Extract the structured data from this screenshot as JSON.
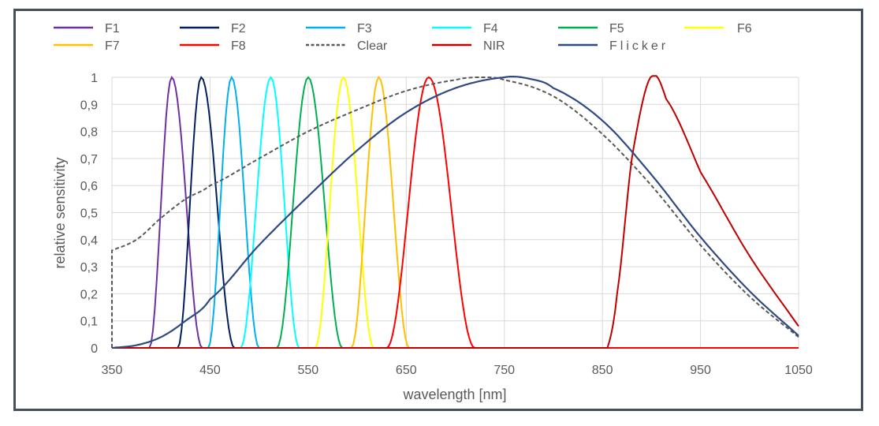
{
  "chart_data": {
    "type": "line",
    "title": "",
    "xlabel": "wavelength [nm]",
    "ylabel": "relative sensitivity",
    "xlim": [
      350,
      1050
    ],
    "ylim": [
      0,
      1
    ],
    "xticks": [
      "350",
      "450",
      "550",
      "650",
      "750",
      "850",
      "950",
      "1050"
    ],
    "xtick_values": [
      350,
      450,
      550,
      650,
      750,
      850,
      950,
      1050
    ],
    "yticks": [
      "0",
      "0,1",
      "0,2",
      "0,3",
      "0,4",
      "0,5",
      "0,6",
      "0,7",
      "0,8",
      "0,9",
      "1"
    ],
    "ytick_values": [
      0,
      0.1,
      0.2,
      0.3,
      0.4,
      0.5,
      0.6,
      0.7,
      0.8,
      0.9,
      1
    ],
    "grid": true,
    "legend_position": "top",
    "series": [
      {
        "name": "F1",
        "color": "#7030a0",
        "style": "solid",
        "interp": "cosine",
        "x": [
          350,
          388,
          411,
          442,
          1050
        ],
        "y": [
          0,
          0,
          1,
          0,
          0
        ]
      },
      {
        "name": "F2",
        "color": "#002060",
        "style": "solid",
        "interp": "cosine",
        "x": [
          350,
          417,
          441,
          475,
          1050
        ],
        "y": [
          0,
          0,
          1,
          0,
          0
        ]
      },
      {
        "name": "F3",
        "color": "#00b0f0",
        "style": "solid",
        "interp": "cosine",
        "x": [
          350,
          448,
          472,
          500,
          1050
        ],
        "y": [
          0,
          0,
          1,
          0,
          0
        ]
      },
      {
        "name": "F4",
        "color": "#00ffff",
        "style": "solid",
        "interp": "cosine",
        "x": [
          350,
          481,
          512,
          541,
          1050
        ],
        "y": [
          0,
          0,
          1,
          0,
          0
        ]
      },
      {
        "name": "F5",
        "color": "#00b050",
        "style": "solid",
        "interp": "cosine",
        "x": [
          350,
          518,
          550,
          585,
          1050
        ],
        "y": [
          0,
          0,
          1,
          0,
          0
        ]
      },
      {
        "name": "F6",
        "color": "#ffff00",
        "style": "solid",
        "interp": "cosine",
        "x": [
          350,
          557,
          586,
          617,
          1050
        ],
        "y": [
          0,
          0,
          1,
          0,
          0
        ]
      },
      {
        "name": "F7",
        "color": "#ffc000",
        "style": "solid",
        "interp": "cosine",
        "x": [
          350,
          594,
          622,
          653,
          1050
        ],
        "y": [
          0,
          0,
          1,
          0,
          0
        ]
      },
      {
        "name": "F8",
        "color": "#ff0000",
        "style": "solid",
        "interp": "cosine",
        "x": [
          350,
          630,
          673,
          720,
          1050
        ],
        "y": [
          0,
          0,
          1,
          0,
          0
        ]
      },
      {
        "name": "Clear",
        "color": "#595959",
        "style": "dashed",
        "interp": "smooth",
        "x": [
          350,
          350,
          375,
          400,
          425,
          450,
          500,
          550,
          600,
          650,
          700,
          725,
          750,
          800,
          850,
          900,
          950,
          1000,
          1050
        ],
        "y": [
          0,
          0.36,
          0.4,
          0.48,
          0.55,
          0.6,
          0.7,
          0.8,
          0.88,
          0.95,
          0.99,
          1.0,
          0.99,
          0.93,
          0.79,
          0.6,
          0.38,
          0.19,
          0.04
        ]
      },
      {
        "name": "NIR",
        "color": "#c00000",
        "style": "solid",
        "interp": "smooth",
        "x": [
          350,
          855,
          865,
          880,
          899,
          915,
          950,
          1000,
          1050
        ],
        "y": [
          0,
          0,
          0.2,
          0.7,
          1.0,
          0.92,
          0.65,
          0.34,
          0.08
        ]
      },
      {
        "name": "Flicker",
        "color": "#2f4a80",
        "style": "solid",
        "interp": "smooth",
        "x": [
          350,
          375,
          400,
          425,
          450,
          500,
          550,
          600,
          650,
          700,
          750,
          775,
          800,
          850,
          900,
          950,
          1000,
          1050
        ],
        "y": [
          0,
          0.01,
          0.04,
          0.1,
          0.18,
          0.38,
          0.56,
          0.73,
          0.87,
          0.96,
          1.0,
          0.995,
          0.96,
          0.84,
          0.64,
          0.41,
          0.21,
          0.045
        ]
      }
    ]
  }
}
